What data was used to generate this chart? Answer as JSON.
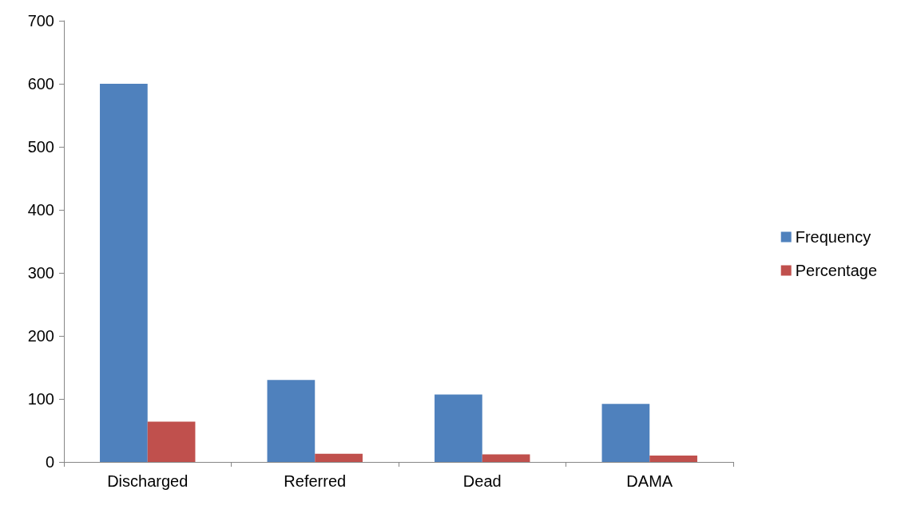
{
  "chart_data": {
    "type": "bar",
    "categories": [
      "Discharged",
      "Referred",
      "Dead",
      "DAMA"
    ],
    "series": [
      {
        "name": "Frequency",
        "color": "#4f81bd",
        "values": [
          600,
          130,
          107,
          92
        ]
      },
      {
        "name": "Percentage",
        "color": "#c0504d",
        "values": [
          64,
          13,
          12,
          10
        ]
      }
    ],
    "ylim": [
      0,
      700
    ],
    "yticks": [
      0,
      100,
      200,
      300,
      400,
      500,
      600,
      700
    ],
    "grid": false,
    "legend": "right"
  }
}
